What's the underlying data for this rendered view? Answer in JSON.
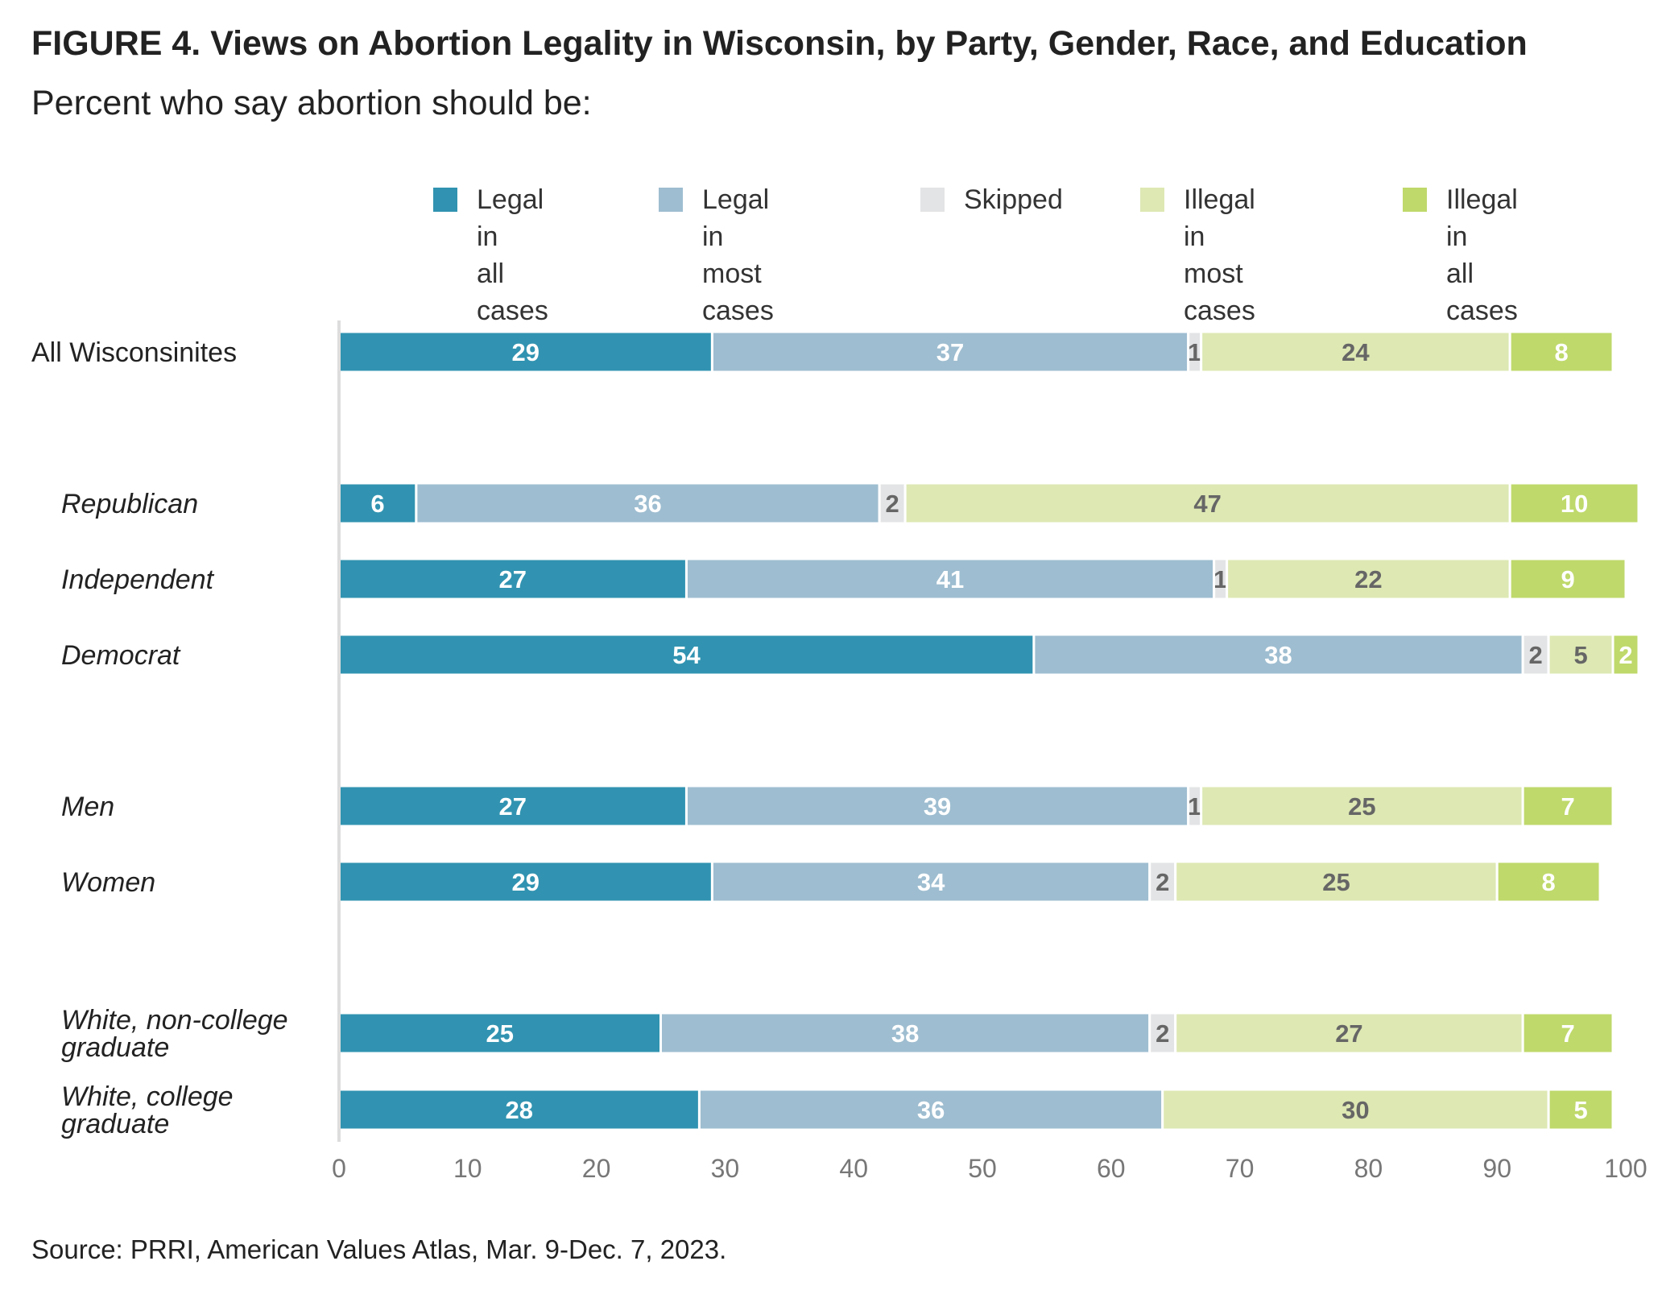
{
  "title": "FIGURE 4. Views on Abortion Legality in Wisconsin, by Party, Gender, Race, and Education",
  "subtitle": "Percent who say abortion should be:",
  "source": "Source: PRRI, American Values Atlas, Mar. 9-Dec. 7, 2023.",
  "legend": [
    {
      "label": "Legal in\nall cases",
      "color": "#3193b1"
    },
    {
      "label": "Legal in\nmost cases",
      "color": "#9ebdd0"
    },
    {
      "label": "Skipped",
      "color": "#e3e4e5"
    },
    {
      "label": "Illegal in\nmost cases",
      "color": "#dde8b3"
    },
    {
      "label": "Illegal in\nall cases",
      "color": "#bfd96b"
    }
  ],
  "chart_data": {
    "type": "bar",
    "orientation": "horizontal",
    "stacked": true,
    "categories": [
      "All Wisconsinites",
      "Republican",
      "Independent",
      "Democrat",
      "Men",
      "Women",
      "White, non-college graduate",
      "White, college graduate"
    ],
    "italic_categories": [
      false,
      true,
      true,
      true,
      true,
      true,
      true,
      true
    ],
    "series": [
      {
        "name": "Legal in all cases",
        "color": "#3193b1",
        "label_color": "#ffffff",
        "values": [
          29,
          6,
          27,
          54,
          27,
          29,
          25,
          28
        ]
      },
      {
        "name": "Legal in most cases",
        "color": "#9ebdd0",
        "label_color": "#ffffff",
        "values": [
          37,
          36,
          41,
          38,
          39,
          34,
          38,
          36
        ]
      },
      {
        "name": "Skipped",
        "color": "#e3e4e5",
        "label_color": "#666666",
        "values": [
          1,
          2,
          1,
          2,
          1,
          2,
          2,
          0
        ]
      },
      {
        "name": "Illegal in most cases",
        "color": "#dde8b3",
        "label_color": "#666666",
        "values": [
          24,
          47,
          22,
          5,
          25,
          25,
          27,
          30
        ]
      },
      {
        "name": "Illegal in all cases",
        "color": "#bfd96b",
        "label_color": "#ffffff",
        "values": [
          8,
          10,
          9,
          2,
          7,
          8,
          7,
          5
        ]
      }
    ],
    "xlim": [
      0,
      100
    ],
    "xticks": [
      0,
      10,
      20,
      30,
      40,
      50,
      60,
      70,
      80,
      90,
      100
    ],
    "xlabel": "",
    "ylabel": "",
    "grid": false,
    "legend_position": "top"
  }
}
